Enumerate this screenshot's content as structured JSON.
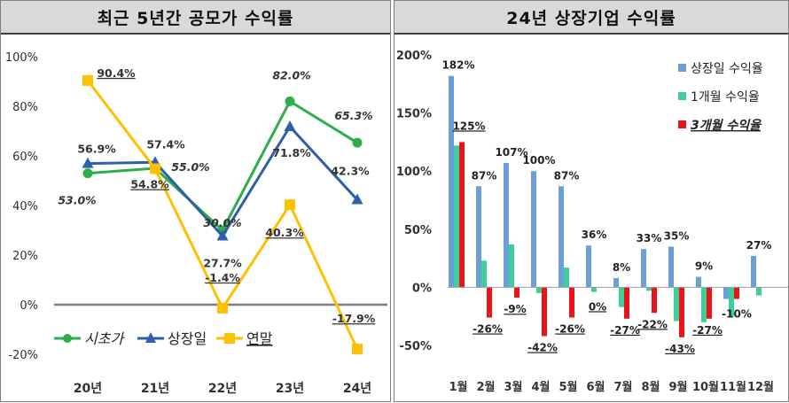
{
  "left_panel": {
    "title": "최근 5년간 공모가 수익률"
  },
  "right_panel": {
    "title": "24년 상장기업 수익률"
  },
  "colors": {
    "green": "#2ead4b",
    "blue": "#2e5fa8",
    "gold": "#ffc000",
    "bar_blue": "#6a9fd8",
    "bar_teal": "#3ecf97",
    "bar_red": "#e8141a"
  },
  "chart_data": [
    {
      "type": "line",
      "title": "최근 5년간 공모가 수익률",
      "categories": [
        "20년",
        "21년",
        "22년",
        "23년",
        "24년"
      ],
      "ylim": [
        -20,
        100
      ],
      "yticks": [
        "-20%",
        "0%",
        "20%",
        "40%",
        "60%",
        "80%",
        "100%"
      ],
      "legend_position": "bottom-left",
      "series": [
        {
          "name": "시초가",
          "values": [
            53.0,
            55.0,
            30.0,
            82.0,
            65.3
          ],
          "labels": [
            "53.0%",
            "55.0%",
            "30.0%",
            "82.0%",
            "65.3%"
          ]
        },
        {
          "name": "상장일",
          "values": [
            56.9,
            57.4,
            27.7,
            71.8,
            42.3
          ],
          "labels": [
            "56.9%",
            "57.4%",
            "27.7%",
            "71.8%",
            "42.3%"
          ]
        },
        {
          "name": "연말",
          "values": [
            90.4,
            54.8,
            -1.4,
            40.3,
            -17.9
          ],
          "labels": [
            "90.4%",
            "54.8%",
            "-1.4%",
            "40.3%",
            "-17.9%"
          ]
        }
      ]
    },
    {
      "type": "bar",
      "title": "24년 상장기업 수익률",
      "categories": [
        "1월",
        "2월",
        "3월",
        "4월",
        "5월",
        "6월",
        "7월",
        "8월",
        "9월",
        "10월",
        "11월",
        "12월"
      ],
      "ylim": [
        -50,
        200
      ],
      "yticks": [
        "-50%",
        "0%",
        "50%",
        "100%",
        "150%",
        "200%"
      ],
      "legend_position": "top-right",
      "series": [
        {
          "name": "상장일 수익율",
          "values": [
            182,
            87,
            107,
            100,
            87,
            36,
            8,
            33,
            35,
            9,
            -10,
            27
          ],
          "labels": [
            "182%",
            "87%",
            "107%",
            "100%",
            "87%",
            "36%",
            "8%",
            "33%",
            "35%",
            "9%",
            "",
            "27%"
          ]
        },
        {
          "name": "1개월 수익율",
          "values": [
            122,
            23,
            37,
            -5,
            17,
            -4,
            -17,
            -3,
            -29,
            -30,
            -25,
            -7
          ],
          "labels": [
            "",
            "",
            "",
            "",
            "",
            "",
            "",
            "",
            "",
            "",
            "",
            ""
          ]
        },
        {
          "name": "3개월 수익율",
          "values": [
            125,
            -26,
            -9,
            -42,
            -26,
            0,
            -27,
            -22,
            -43,
            -27,
            -10,
            null
          ],
          "labels": [
            "125%",
            "-26%",
            "-9%",
            "-42%",
            "-26%",
            "0%",
            "-27%",
            "-22%",
            "-43%",
            "-27%",
            "-10%",
            ""
          ]
        }
      ]
    }
  ]
}
